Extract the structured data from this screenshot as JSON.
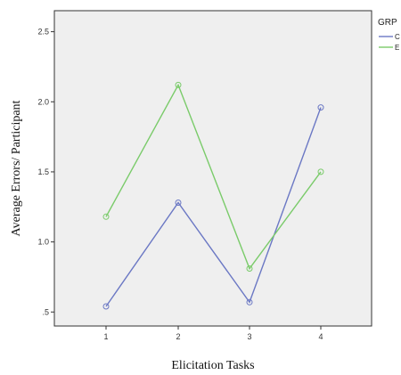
{
  "chart_data": {
    "type": "line",
    "xlabel": "Elicitation Tasks",
    "ylabel": "Average Errors/ Participant",
    "categories": [
      "1",
      "2",
      "3",
      "4"
    ],
    "ylim": [
      0.4,
      2.65
    ],
    "yticks": [
      0.5,
      1.0,
      1.5,
      2.0,
      2.5
    ],
    "ytick_labels": [
      ".5",
      "1.0",
      "1.5",
      "2.0",
      "2.5"
    ],
    "grid": false,
    "plot_background": "#efefef",
    "legend": {
      "title": "GRP",
      "placement": "right"
    },
    "series": [
      {
        "name": "C",
        "color": "#6b78c4",
        "values": [
          0.54,
          1.28,
          0.57,
          1.96
        ]
      },
      {
        "name": "E",
        "color": "#7acb6a",
        "values": [
          1.18,
          2.12,
          0.81,
          1.5
        ]
      }
    ]
  }
}
